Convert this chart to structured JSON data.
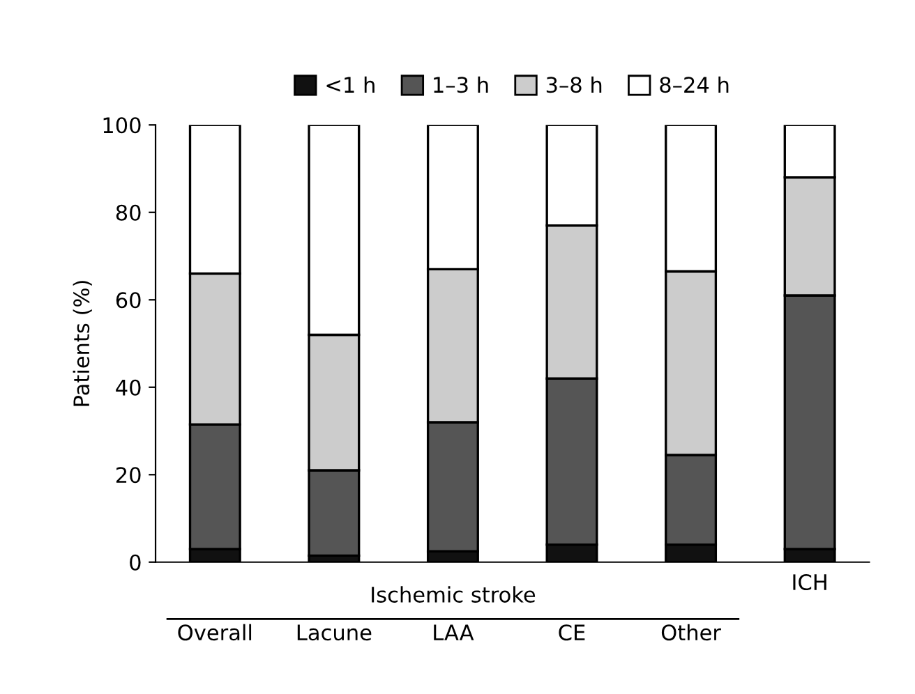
{
  "chart_data": {
    "type": "bar",
    "stacked": true,
    "ylabel": "Patients (%)",
    "categories": [
      "Overall",
      "Lacune",
      "LAA",
      "CE",
      "Other",
      "ICH"
    ],
    "series": [
      {
        "name": "<1 h",
        "color": "#111111",
        "values": [
          3,
          1.5,
          2.5,
          4,
          4,
          3
        ]
      },
      {
        "name": "1–3 h",
        "color": "#555555",
        "values": [
          28.5,
          19.5,
          29.5,
          38,
          20.5,
          58
        ]
      },
      {
        "name": "3–8 h",
        "color": "#cccccc",
        "values": [
          34.5,
          31,
          35,
          35,
          42,
          27
        ]
      },
      {
        "name": "8–24 h",
        "color": "#ffffff",
        "values": [
          34,
          48,
          33,
          23,
          33.5,
          12
        ]
      }
    ],
    "ylim": [
      0,
      100
    ],
    "yticks": [
      0,
      20,
      40,
      60,
      80,
      100
    ],
    "grid": false,
    "legend": "top",
    "annotations": [
      "Ischemic stroke"
    ]
  }
}
